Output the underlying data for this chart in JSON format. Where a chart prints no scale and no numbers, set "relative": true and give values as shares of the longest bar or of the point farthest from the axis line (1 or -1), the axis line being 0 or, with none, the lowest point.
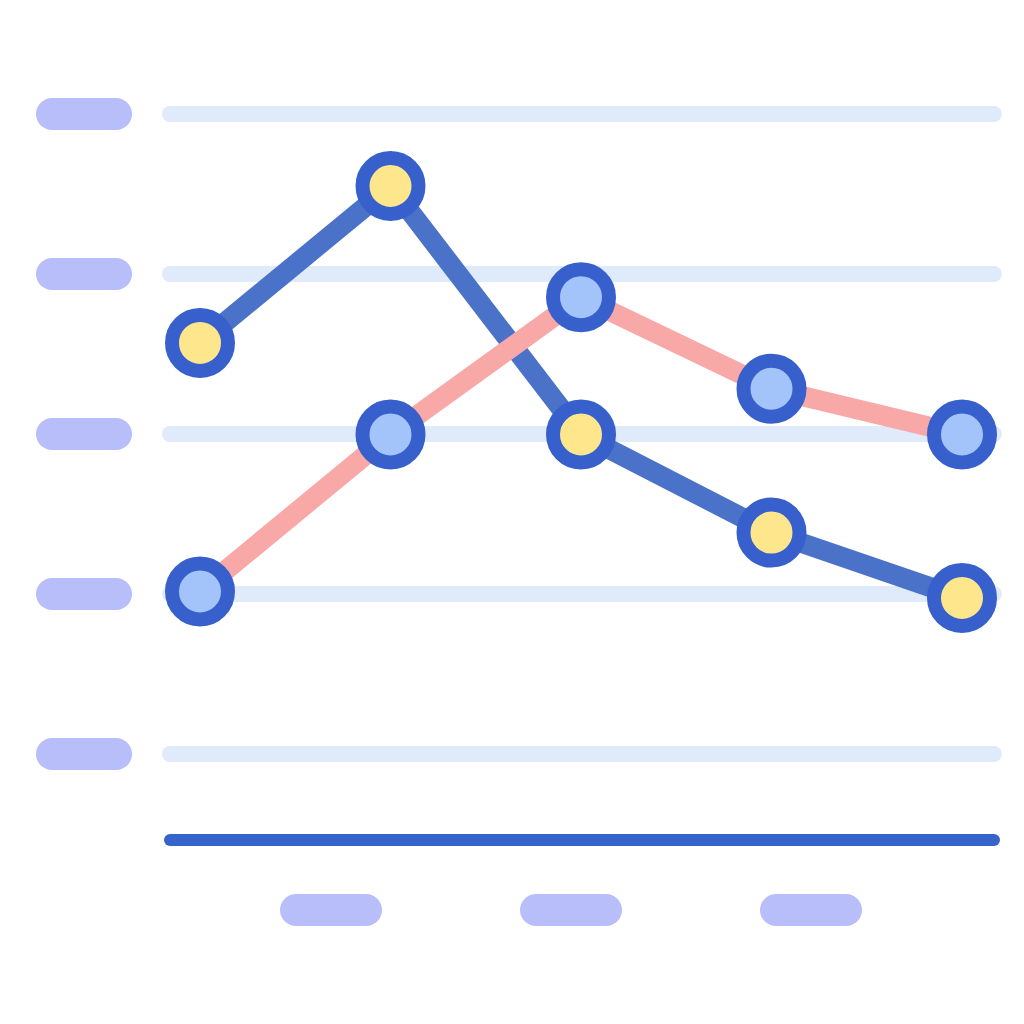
{
  "chart_data": {
    "type": "line",
    "categories": [
      null,
      null,
      null,
      null,
      null
    ],
    "relative": true,
    "grid": "y",
    "marker": "circle",
    "line_style": "solid",
    "series": [
      {
        "color": "#4a72c9",
        "values": [
          0.76,
          1,
          0.62,
          0.47,
          0.37
        ]
      },
      {
        "color": "#f9a8a8",
        "values": [
          0.38,
          0.62,
          0.83,
          0.69,
          0.62
        ]
      }
    ]
  }
}
